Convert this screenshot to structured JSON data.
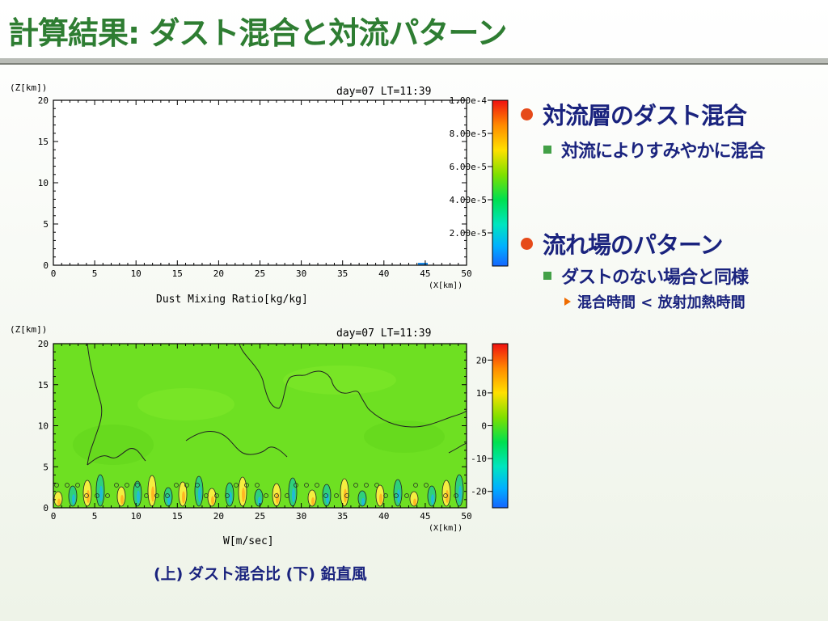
{
  "slide": {
    "title": "計算結果: ダスト混合と対流パターン",
    "caption": "(上) ダスト混合比 (下) 鉛直風",
    "bullets": [
      {
        "level": 1,
        "text": "対流層のダスト混合"
      },
      {
        "level": 2,
        "text": "対流によりすみやかに混合"
      },
      {
        "level": 1,
        "text": "流れ場のパターン"
      },
      {
        "level": 2,
        "text": "ダストのない場合と同様"
      },
      {
        "level": 3,
        "text": "混合時間 < 放射加熱時間"
      }
    ],
    "colors": {
      "title": "#2e7d32",
      "text": "#1a237e",
      "bullet_l1": "#e64a19",
      "bullet_l2": "#43a047",
      "bullet_l3": "#ef6c00"
    }
  },
  "chart_data": [
    {
      "type": "heatmap",
      "title": "day=07 LT=11:39",
      "xlabel": "Dust Mixing Ratio[kg/kg]",
      "xunit": "(X[km])",
      "yunit": "(Z[km])",
      "xlim": [
        0,
        50
      ],
      "ylim": [
        0,
        20
      ],
      "x_ticks": [
        0,
        5,
        10,
        15,
        20,
        25,
        30,
        35,
        40,
        45,
        50
      ],
      "y_ticks": [
        0,
        5,
        10,
        15,
        20
      ],
      "colorbar_ticks": [
        "2.00e-5",
        "4.00e-5",
        "6.00e-5",
        "8.00e-5",
        "1.00e-4"
      ],
      "colorbar_range": [
        0,
        0.0001
      ],
      "field": "nearly zero everywhere; small blue patch near x=45-46 km at z=0"
    },
    {
      "type": "heatmap",
      "title": "day=07 LT=11:39",
      "xlabel": "W[m/sec]",
      "xunit": "(X[km])",
      "yunit": "(Z[km])",
      "xlim": [
        0,
        50
      ],
      "ylim": [
        0,
        20
      ],
      "x_ticks": [
        0,
        5,
        10,
        15,
        20,
        25,
        30,
        35,
        40,
        45,
        50
      ],
      "y_ticks": [
        0,
        5,
        10,
        15,
        20
      ],
      "colorbar_ticks": [
        20,
        10,
        0,
        -10,
        -20
      ],
      "colorbar_range": [
        -25,
        25
      ],
      "field": "values near 0 (green) in most of domain; convective updraft/downdraft cells of alternating sign confined below z≈5 km"
    }
  ]
}
